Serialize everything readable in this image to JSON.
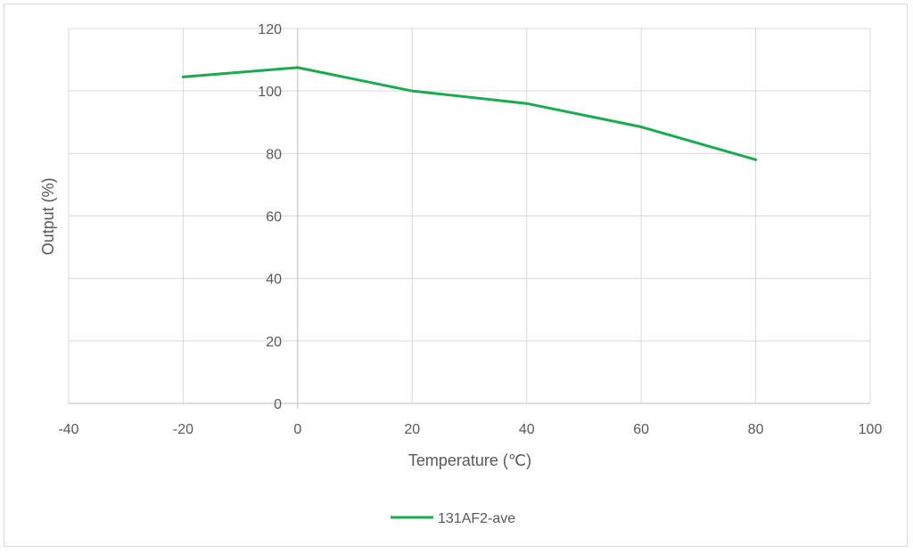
{
  "chart_data": {
    "type": "line",
    "title": "",
    "xlabel": "Temperature (℃)",
    "ylabel": "Output (%)",
    "xlim": [
      -40,
      100
    ],
    "ylim": [
      0,
      120
    ],
    "x_ticks": [
      -40,
      -20,
      0,
      20,
      40,
      60,
      80,
      100
    ],
    "y_ticks": [
      0,
      20,
      40,
      60,
      80,
      100,
      120
    ],
    "grid": true,
    "legend_position": "bottom",
    "series": [
      {
        "name": "131AF2-ave",
        "color": "#1aab50",
        "x": [
          -20,
          0,
          20,
          40,
          60,
          80
        ],
        "y": [
          104.5,
          107.5,
          100,
          96,
          88.5,
          78
        ]
      }
    ]
  }
}
